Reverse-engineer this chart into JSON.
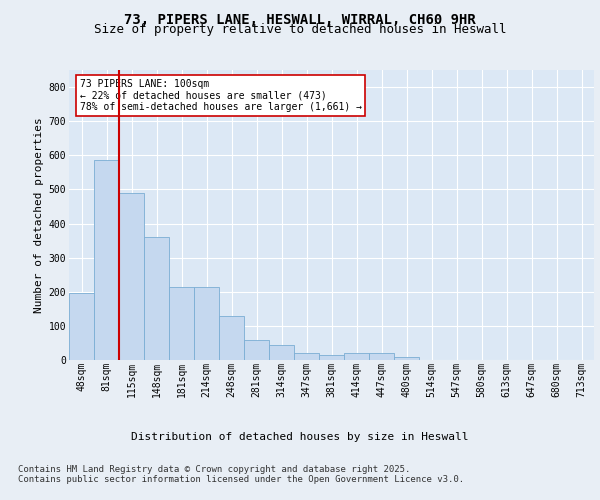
{
  "title_line1": "73, PIPERS LANE, HESWALL, WIRRAL, CH60 9HR",
  "title_line2": "Size of property relative to detached houses in Heswall",
  "xlabel": "Distribution of detached houses by size in Heswall",
  "ylabel": "Number of detached properties",
  "categories": [
    "48sqm",
    "81sqm",
    "115sqm",
    "148sqm",
    "181sqm",
    "214sqm",
    "248sqm",
    "281sqm",
    "314sqm",
    "347sqm",
    "381sqm",
    "414sqm",
    "447sqm",
    "480sqm",
    "514sqm",
    "547sqm",
    "580sqm",
    "613sqm",
    "647sqm",
    "680sqm",
    "713sqm"
  ],
  "values": [
    195,
    585,
    490,
    360,
    215,
    215,
    130,
    60,
    45,
    20,
    15,
    20,
    20,
    10,
    0,
    0,
    0,
    0,
    0,
    0,
    0
  ],
  "bar_color": "#c5d8ef",
  "bar_edge_color": "#7aadd4",
  "vline_color": "#cc0000",
  "annotation_text": "73 PIPERS LANE: 100sqm\n← 22% of detached houses are smaller (473)\n78% of semi-detached houses are larger (1,661) →",
  "annotation_box_color": "#ffffff",
  "annotation_box_edgecolor": "#cc0000",
  "ylim": [
    0,
    850
  ],
  "yticks": [
    0,
    100,
    200,
    300,
    400,
    500,
    600,
    700,
    800
  ],
  "footer_text": "Contains HM Land Registry data © Crown copyright and database right 2025.\nContains public sector information licensed under the Open Government Licence v3.0.",
  "fig_background_color": "#e8eef5",
  "plot_background_color": "#dce8f5",
  "title_fontsize": 10,
  "subtitle_fontsize": 9,
  "axis_label_fontsize": 8,
  "tick_fontsize": 7,
  "footer_fontsize": 6.5,
  "vline_x": 1.5
}
